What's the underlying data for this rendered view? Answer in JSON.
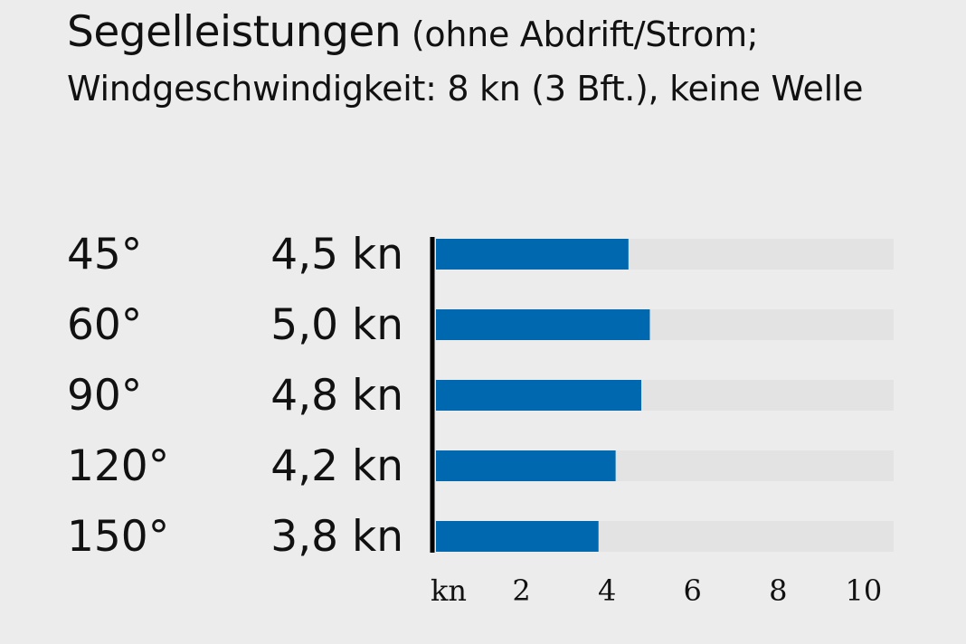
{
  "title": "Segelleistungen",
  "subtitle": "(ohne Abdrift/Strom; Windgeschwindigkeit: 8 kn (3 Bft.), keine Welle",
  "chart_data": {
    "type": "bar",
    "orientation": "horizontal",
    "title": "Segelleistungen",
    "subtitle": "(ohne Abdrift/Strom; Windgeschwindigkeit: 8 kn (3 Bft.), keine Welle",
    "categories": [
      "45°",
      "60°",
      "90°",
      "120°",
      "150°"
    ],
    "values": [
      4.5,
      5.0,
      4.8,
      4.2,
      3.8
    ],
    "value_labels": [
      "4,5 kn",
      "5,0 kn",
      "4,8 kn",
      "4,2 kn",
      "3,8 kn"
    ],
    "xlim": [
      0,
      10.7
    ],
    "x_unit_label": "kn",
    "x_ticks": [
      2,
      4,
      6,
      8,
      10
    ],
    "x_tick_labels": [
      "2",
      "4",
      "6",
      "8",
      "10"
    ],
    "grid": false,
    "legend": "none",
    "colors": {
      "bar": "#0068ae",
      "track": "#e3e3e3",
      "axis": "#000000",
      "background": "#ececec"
    }
  }
}
